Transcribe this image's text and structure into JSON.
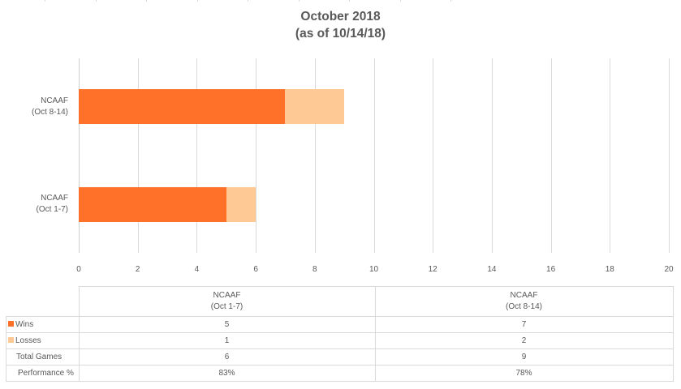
{
  "chart_data": {
    "type": "bar",
    "orientation": "horizontal",
    "stacked": true,
    "title": "October 2018",
    "subtitle": "(as of 10/14/18)",
    "categories": [
      "NCAAF (Oct 1-7)",
      "NCAAF (Oct 8-14)"
    ],
    "series": [
      {
        "name": "Wins",
        "values": [
          5,
          7
        ],
        "color": "#FF7128"
      },
      {
        "name": "Losses",
        "values": [
          1,
          2
        ],
        "color": "#FFC996"
      }
    ],
    "xlim": [
      0,
      20
    ],
    "xticks": [
      "0",
      "2",
      "4",
      "6",
      "8",
      "10",
      "12",
      "14",
      "16",
      "18",
      "20"
    ],
    "grid": true,
    "legend_position": "data table",
    "data_table": {
      "columns": [
        [
          "NCAAF",
          "(Oct 1-7)"
        ],
        [
          "NCAAF",
          "(Oct 8-14)"
        ]
      ],
      "rows": [
        {
          "label": "Wins",
          "values": [
            "5",
            "7"
          ],
          "swatch": "#FF7128"
        },
        {
          "label": "Losses",
          "values": [
            "1",
            "2"
          ],
          "swatch": "#FFC996"
        },
        {
          "label": "Total Games",
          "values": [
            "6",
            "9"
          ]
        },
        {
          "label": "Performance %",
          "values": [
            "83%",
            "78%"
          ]
        }
      ]
    }
  },
  "labels": {
    "cat_top_line1": "NCAAF",
    "cat_top_line2": "(Oct 8-14)",
    "cat_bottom_line1": "NCAAF",
    "cat_bottom_line2": "(Oct 1-7)"
  }
}
